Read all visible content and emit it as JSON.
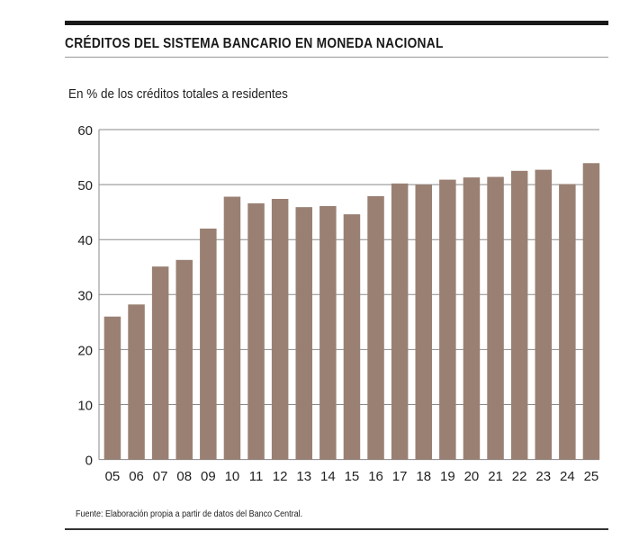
{
  "chart_data": {
    "type": "bar",
    "title": "CRÉDITOS DEL SISTEMA BANCARIO EN MONEDA NACIONAL",
    "subtitle": "En % de los créditos totales a residentes",
    "xlabel": "",
    "ylabel": "",
    "ylim": [
      0,
      60
    ],
    "yticks": [
      0,
      10,
      20,
      30,
      40,
      50,
      60
    ],
    "grid": true,
    "categories": [
      "05",
      "06",
      "07",
      "08",
      "09",
      "10",
      "11",
      "12",
      "13",
      "14",
      "15",
      "16",
      "17",
      "18",
      "19",
      "20",
      "21",
      "22",
      "23",
      "24",
      "25"
    ],
    "values": [
      26.0,
      28.2,
      35.1,
      36.3,
      42.0,
      47.8,
      46.6,
      47.4,
      45.9,
      46.1,
      44.6,
      47.9,
      50.2,
      50.0,
      50.9,
      51.3,
      51.4,
      52.5,
      52.7,
      50.1,
      53.9
    ],
    "bar_color": "#9a8073",
    "source": "Fuente: Elaboración propia a partir de datos del Banco Central."
  }
}
